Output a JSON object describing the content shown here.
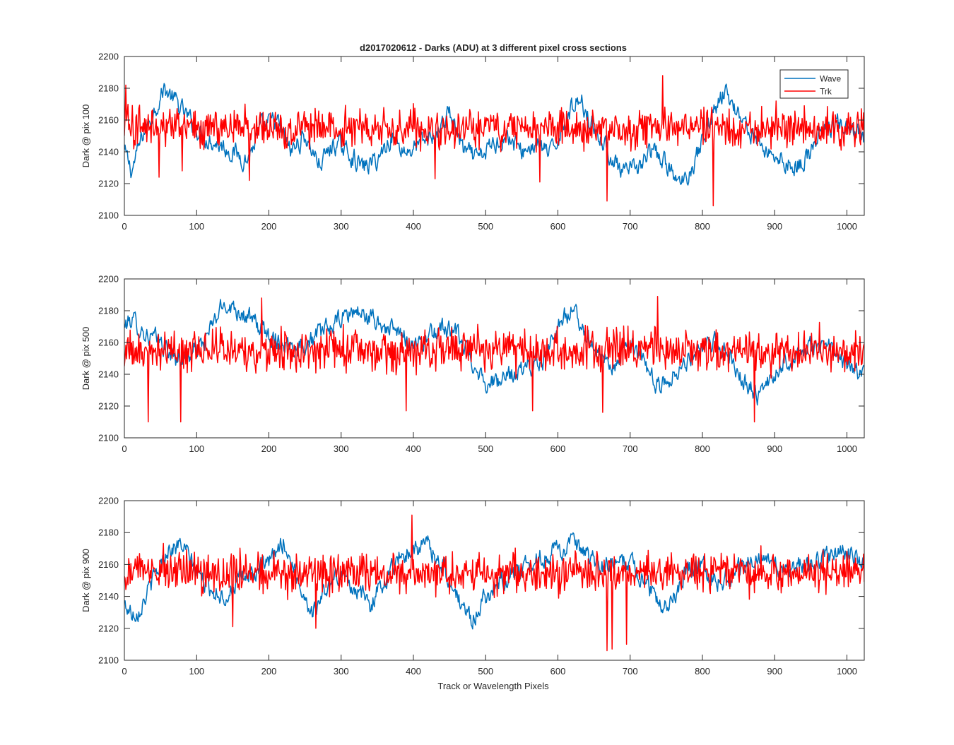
{
  "figure": {
    "title": "d2017020612 - Darks (ADU) at 3 different pixel cross sections",
    "xlabel": "Track or Wavelength Pixels"
  },
  "legend": {
    "entries": [
      {
        "name": "Wave",
        "color": "#0072BD"
      },
      {
        "name": "Trk",
        "color": "#FF0000"
      }
    ],
    "placement": "top-right of first panel"
  },
  "chart_data": [
    {
      "type": "line",
      "title": "d2017020612 - Darks (ADU) at 3 different pixel cross sections",
      "ylabel": "Dark @ pix 100",
      "xlabel": "",
      "xlim": [
        0,
        1024
      ],
      "ylim": [
        2100,
        2200
      ],
      "xticks": [
        0,
        100,
        200,
        300,
        400,
        500,
        600,
        700,
        800,
        900,
        1000
      ],
      "yticks": [
        2100,
        2120,
        2140,
        2160,
        2180,
        2200
      ],
      "grid": false,
      "series": [
        {
          "name": "Wave",
          "color": "#0072BD",
          "x": [
            0,
            10,
            25,
            40,
            55,
            70,
            90,
            110,
            130,
            150,
            170,
            190,
            210,
            230,
            250,
            270,
            290,
            310,
            330,
            350,
            370,
            390,
            410,
            430,
            450,
            470,
            490,
            510,
            530,
            550,
            570,
            590,
            610,
            630,
            650,
            670,
            690,
            710,
            730,
            750,
            770,
            790,
            810,
            830,
            850,
            870,
            890,
            910,
            930,
            950,
            970,
            990,
            1010,
            1024
          ],
          "y": [
            2140,
            2128,
            2150,
            2165,
            2180,
            2172,
            2160,
            2150,
            2145,
            2140,
            2135,
            2155,
            2160,
            2140,
            2150,
            2132,
            2145,
            2140,
            2130,
            2135,
            2150,
            2140,
            2145,
            2150,
            2165,
            2140,
            2135,
            2145,
            2150,
            2140,
            2145,
            2138,
            2160,
            2175,
            2155,
            2140,
            2125,
            2130,
            2140,
            2132,
            2118,
            2135,
            2160,
            2178,
            2165,
            2150,
            2140,
            2135,
            2130,
            2140,
            2155,
            2158,
            2150,
            2148
          ]
        },
        {
          "name": "Trk",
          "color": "#FF0000",
          "noise_amplitude": 15,
          "baseline": 2155,
          "extrema": [
            [
              2,
              2182
            ],
            [
              48,
              2124
            ],
            [
              80,
              2128
            ],
            [
              173,
              2122
            ],
            [
              430,
              2123
            ],
            [
              575,
              2121
            ],
            [
              668,
              2109
            ],
            [
              745,
              2188
            ],
            [
              815,
              2106
            ]
          ]
        }
      ]
    },
    {
      "type": "line",
      "ylabel": "Dark @ pix 500",
      "xlabel": "",
      "xlim": [
        0,
        1024
      ],
      "ylim": [
        2100,
        2200
      ],
      "xticks": [
        0,
        100,
        200,
        300,
        400,
        500,
        600,
        700,
        800,
        900,
        1000
      ],
      "yticks": [
        2100,
        2120,
        2140,
        2160,
        2180,
        2200
      ],
      "grid": false,
      "series": [
        {
          "name": "Wave",
          "color": "#0072BD",
          "x": [
            0,
            10,
            30,
            50,
            70,
            90,
            110,
            130,
            140,
            160,
            180,
            200,
            220,
            240,
            260,
            280,
            300,
            320,
            340,
            360,
            380,
            400,
            420,
            440,
            460,
            480,
            500,
            520,
            540,
            560,
            580,
            600,
            620,
            640,
            660,
            680,
            700,
            720,
            740,
            760,
            780,
            800,
            820,
            840,
            860,
            880,
            900,
            920,
            940,
            960,
            980,
            1000,
            1024
          ],
          "y": [
            2170,
            2175,
            2165,
            2160,
            2150,
            2152,
            2160,
            2178,
            2185,
            2180,
            2172,
            2165,
            2160,
            2158,
            2162,
            2168,
            2175,
            2180,
            2175,
            2170,
            2165,
            2160,
            2162,
            2170,
            2165,
            2150,
            2135,
            2135,
            2140,
            2145,
            2150,
            2172,
            2180,
            2165,
            2150,
            2145,
            2160,
            2145,
            2132,
            2140,
            2150,
            2155,
            2160,
            2150,
            2135,
            2125,
            2140,
            2150,
            2155,
            2158,
            2155,
            2145,
            2140
          ]
        },
        {
          "name": "Trk",
          "color": "#FF0000",
          "noise_amplitude": 15,
          "baseline": 2155,
          "extrema": [
            [
              33,
              2110
            ],
            [
              78,
              2110
            ],
            [
              190,
              2188
            ],
            [
              390,
              2117
            ],
            [
              565,
              2117
            ],
            [
              662,
              2116
            ],
            [
              738,
              2189
            ],
            [
              872,
              2110
            ]
          ]
        }
      ]
    },
    {
      "type": "line",
      "ylabel": "Dark @ pix 900",
      "xlabel": "Track or Wavelength Pixels",
      "xlim": [
        0,
        1024
      ],
      "ylim": [
        2100,
        2200
      ],
      "xticks": [
        0,
        100,
        200,
        300,
        400,
        500,
        600,
        700,
        800,
        900,
        1000
      ],
      "yticks": [
        2100,
        2120,
        2140,
        2160,
        2180,
        2200
      ],
      "grid": false,
      "series": [
        {
          "name": "Wave",
          "color": "#0072BD",
          "x": [
            0,
            10,
            20,
            40,
            60,
            80,
            100,
            120,
            140,
            160,
            180,
            200,
            220,
            240,
            260,
            280,
            300,
            320,
            340,
            360,
            380,
            400,
            420,
            440,
            460,
            480,
            500,
            520,
            540,
            560,
            580,
            600,
            620,
            640,
            660,
            680,
            700,
            720,
            740,
            760,
            780,
            800,
            820,
            840,
            860,
            880,
            900,
            920,
            940,
            960,
            980,
            1000,
            1024
          ],
          "y": [
            2135,
            2130,
            2132,
            2150,
            2170,
            2172,
            2155,
            2145,
            2140,
            2150,
            2155,
            2160,
            2175,
            2150,
            2130,
            2145,
            2155,
            2145,
            2135,
            2150,
            2165,
            2170,
            2172,
            2160,
            2140,
            2125,
            2140,
            2150,
            2155,
            2160,
            2165,
            2170,
            2172,
            2165,
            2158,
            2160,
            2162,
            2150,
            2135,
            2140,
            2160,
            2158,
            2150,
            2152,
            2160,
            2165,
            2158,
            2155,
            2160,
            2162,
            2165,
            2168,
            2160
          ]
        },
        {
          "name": "Trk",
          "color": "#FF0000",
          "noise_amplitude": 15,
          "baseline": 2155,
          "extrema": [
            [
              398,
              2191
            ],
            [
              265,
              2120
            ],
            [
              668,
              2106
            ],
            [
              695,
              2110
            ],
            [
              675,
              2107
            ],
            [
              150,
              2121
            ]
          ]
        }
      ]
    }
  ]
}
